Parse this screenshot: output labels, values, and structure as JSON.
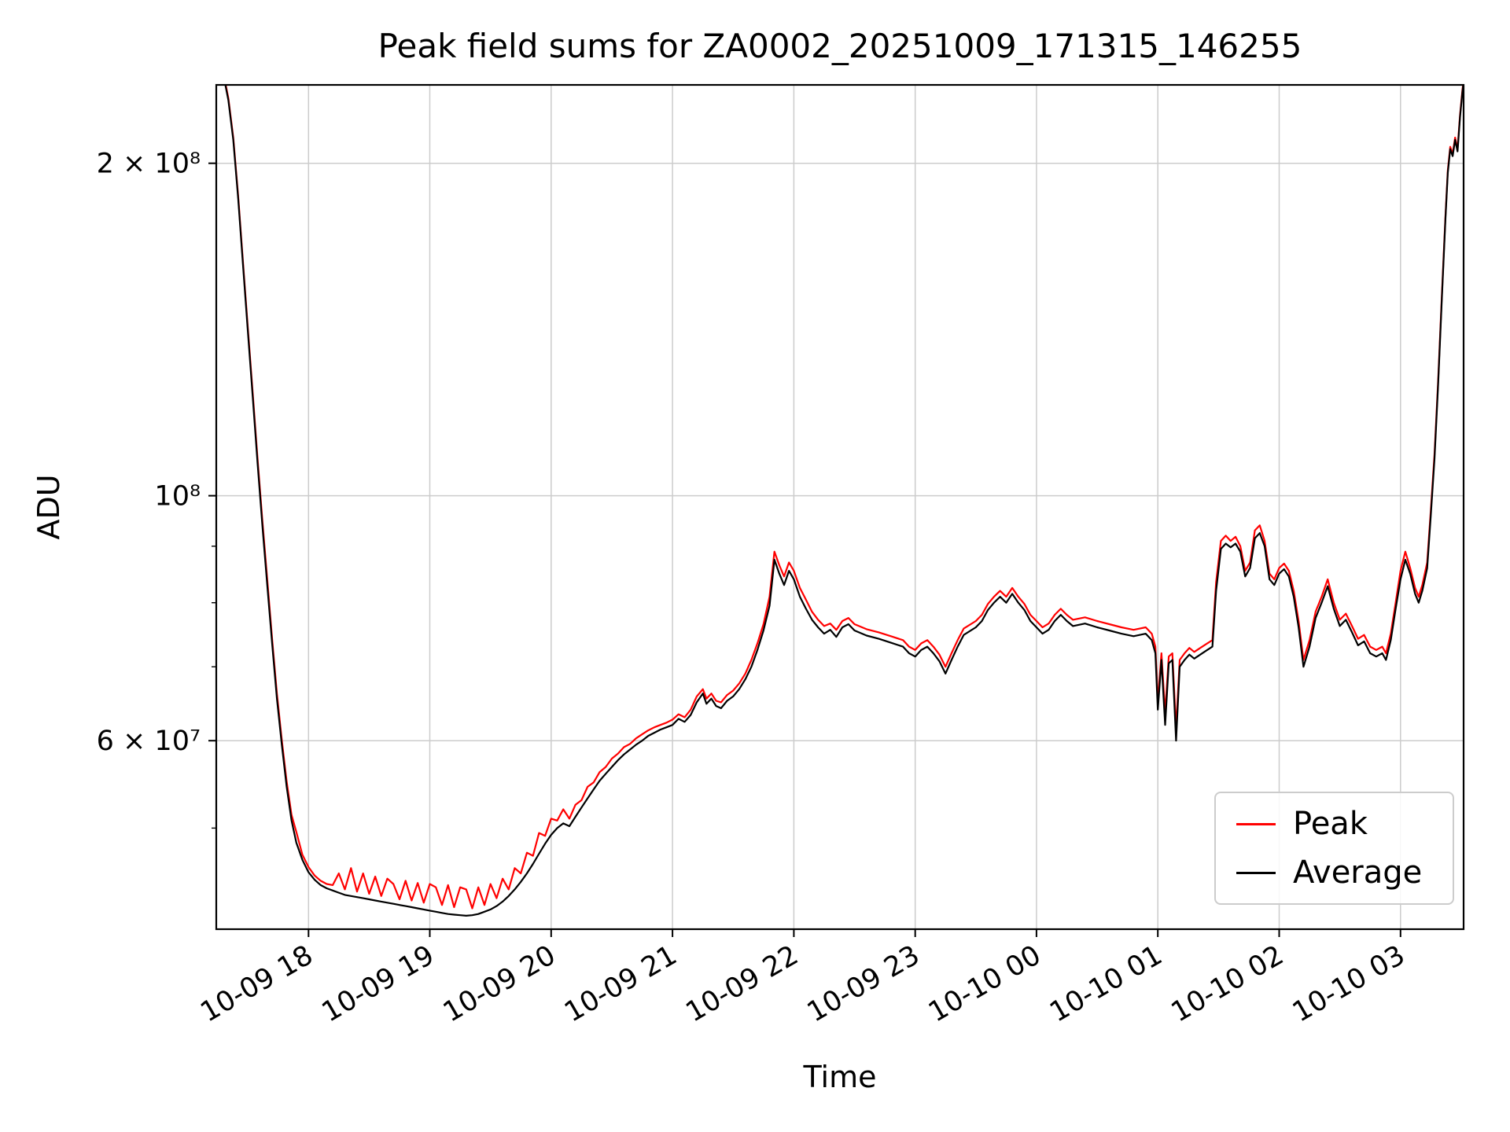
{
  "chart_data": {
    "type": "line",
    "title": "Peak field sums for ZA0002_20251009_171315_146255",
    "xlabel": "Time",
    "ylabel": "ADU",
    "yscale": "log",
    "grid": true,
    "grid_color": "#cccccc",
    "legend_position": "lower right",
    "xlim_hours": [
      17.24,
      27.52
    ],
    "ylim_millions": [
      40.5,
      235.5
    ],
    "xticks": [
      18,
      19,
      20,
      21,
      22,
      23,
      24,
      25,
      26,
      27
    ],
    "xtick_labels": [
      "10-09 18",
      "10-09 19",
      "10-09 20",
      "10-09 21",
      "10-09 22",
      "10-09 23",
      "10-10 00",
      "10-10 01",
      "10-10 02",
      "10-10 03"
    ],
    "yticks_millions": [
      60,
      100,
      200
    ],
    "ytick_labels": [
      "6 × 10⁷",
      "10⁸",
      "2 × 10⁸"
    ],
    "yticks_minor_millions": [
      50,
      70,
      80,
      90
    ],
    "series_meta": [
      {
        "name": "Peak",
        "color": "#ff0000"
      },
      {
        "name": "Average",
        "color": "#000000"
      }
    ],
    "value_unit": "ADU in millions (1e6); time in hours from 2025-10-09 00:00",
    "columns": [
      "time_hours",
      "average_millions",
      "peak_millions"
    ],
    "points": [
      [
        17.3,
        240,
        241
      ],
      [
        17.34,
        228,
        229
      ],
      [
        17.38,
        210,
        211
      ],
      [
        17.42,
        186,
        187
      ],
      [
        17.46,
        162,
        163
      ],
      [
        17.5,
        141,
        142
      ],
      [
        17.54,
        123,
        124
      ],
      [
        17.58,
        107,
        108
      ],
      [
        17.62,
        94,
        95
      ],
      [
        17.66,
        83,
        84
      ],
      [
        17.7,
        73.5,
        74.2
      ],
      [
        17.74,
        65.5,
        66.2
      ],
      [
        17.78,
        59.5,
        60.1
      ],
      [
        17.82,
        54.5,
        55.1
      ],
      [
        17.86,
        50.8,
        51.4
      ],
      [
        17.9,
        48.5,
        49.6
      ],
      [
        17.95,
        46.8,
        47.3
      ],
      [
        18.0,
        45.6,
        46.1
      ],
      [
        18.05,
        44.9,
        45.3
      ],
      [
        18.1,
        44.4,
        44.8
      ],
      [
        18.15,
        44.1,
        44.5
      ],
      [
        18.2,
        43.9,
        44.4
      ],
      [
        18.25,
        43.7,
        45.5
      ],
      [
        18.3,
        43.5,
        44.0
      ],
      [
        18.35,
        43.4,
        46.0
      ],
      [
        18.4,
        43.3,
        43.8
      ],
      [
        18.45,
        43.2,
        45.5
      ],
      [
        18.5,
        43.1,
        43.6
      ],
      [
        18.55,
        43.0,
        45.2
      ],
      [
        18.6,
        42.9,
        43.4
      ],
      [
        18.65,
        42.8,
        45.0
      ],
      [
        18.7,
        42.7,
        44.5
      ],
      [
        18.75,
        42.6,
        43.1
      ],
      [
        18.8,
        42.5,
        44.8
      ],
      [
        18.85,
        42.4,
        43.0
      ],
      [
        18.9,
        42.3,
        44.6
      ],
      [
        18.95,
        42.2,
        42.8
      ],
      [
        19.0,
        42.1,
        44.5
      ],
      [
        19.05,
        42.0,
        44.2
      ],
      [
        19.1,
        41.9,
        42.6
      ],
      [
        19.15,
        41.8,
        44.4
      ],
      [
        19.2,
        41.75,
        42.4
      ],
      [
        19.25,
        41.7,
        44.2
      ],
      [
        19.3,
        41.65,
        44.0
      ],
      [
        19.35,
        41.7,
        42.3
      ],
      [
        19.4,
        41.8,
        44.2
      ],
      [
        19.45,
        42.0,
        42.6
      ],
      [
        19.5,
        42.2,
        44.5
      ],
      [
        19.55,
        42.5,
        43.2
      ],
      [
        19.6,
        42.9,
        45.0
      ],
      [
        19.65,
        43.4,
        44.0
      ],
      [
        19.7,
        44.0,
        46.0
      ],
      [
        19.75,
        44.7,
        45.5
      ],
      [
        19.8,
        45.5,
        47.5
      ],
      [
        19.85,
        46.4,
        47.2
      ],
      [
        19.9,
        47.4,
        49.5
      ],
      [
        19.95,
        48.4,
        49.2
      ],
      [
        20.0,
        49.3,
        51.0
      ],
      [
        20.05,
        50.0,
        50.8
      ],
      [
        20.1,
        50.5,
        52.0
      ],
      [
        20.15,
        50.2,
        51.0
      ],
      [
        20.2,
        51.2,
        52.5
      ],
      [
        20.25,
        52.2,
        53.0
      ],
      [
        20.3,
        53.2,
        54.5
      ],
      [
        20.35,
        54.2,
        55.0
      ],
      [
        20.4,
        55.2,
        56.2
      ],
      [
        20.45,
        56.0,
        56.8
      ],
      [
        20.5,
        56.8,
        57.8
      ],
      [
        20.55,
        57.6,
        58.4
      ],
      [
        20.6,
        58.3,
        59.2
      ],
      [
        20.65,
        58.9,
        59.6
      ],
      [
        20.7,
        59.5,
        60.3
      ],
      [
        20.75,
        60.0,
        60.8
      ],
      [
        20.8,
        60.6,
        61.3
      ],
      [
        20.85,
        61.0,
        61.7
      ],
      [
        20.9,
        61.4,
        62.0
      ],
      [
        20.95,
        61.7,
        62.3
      ],
      [
        21.0,
        62.0,
        62.7
      ],
      [
        21.05,
        62.8,
        63.4
      ],
      [
        21.1,
        62.4,
        63.0
      ],
      [
        21.15,
        63.3,
        64.0
      ],
      [
        21.2,
        65.0,
        65.8
      ],
      [
        21.25,
        66.2,
        66.8
      ],
      [
        21.28,
        64.8,
        65.5
      ],
      [
        21.32,
        65.5,
        66.2
      ],
      [
        21.36,
        64.5,
        65.2
      ],
      [
        21.4,
        64.2,
        65.0
      ],
      [
        21.45,
        65.2,
        66.0
      ],
      [
        21.5,
        65.8,
        66.6
      ],
      [
        21.55,
        66.8,
        67.6
      ],
      [
        21.6,
        68.2,
        69.0
      ],
      [
        21.65,
        70.0,
        71.0
      ],
      [
        21.7,
        72.5,
        73.5
      ],
      [
        21.75,
        75.5,
        76.5
      ],
      [
        21.8,
        79.5,
        81.0
      ],
      [
        21.84,
        87.5,
        89.0
      ],
      [
        21.88,
        85.0,
        86.5
      ],
      [
        21.92,
        83.0,
        84.5
      ],
      [
        21.96,
        85.5,
        87.0
      ],
      [
        22.0,
        84.0,
        85.5
      ],
      [
        22.05,
        81.0,
        82.5
      ],
      [
        22.1,
        79.0,
        80.5
      ],
      [
        22.15,
        77.2,
        78.5
      ],
      [
        22.2,
        76.0,
        77.2
      ],
      [
        22.25,
        75.0,
        76.2
      ],
      [
        22.3,
        75.6,
        76.6
      ],
      [
        22.35,
        74.5,
        75.6
      ],
      [
        22.4,
        76.0,
        77.0
      ],
      [
        22.45,
        76.5,
        77.5
      ],
      [
        22.5,
        75.5,
        76.5
      ],
      [
        22.6,
        74.7,
        75.7
      ],
      [
        22.7,
        74.2,
        75.2
      ],
      [
        22.8,
        73.6,
        74.6
      ],
      [
        22.9,
        73.0,
        74.0
      ],
      [
        22.95,
        72.0,
        73.0
      ],
      [
        23.0,
        71.5,
        72.5
      ],
      [
        23.05,
        72.5,
        73.5
      ],
      [
        23.1,
        73.0,
        74.0
      ],
      [
        23.15,
        72.0,
        73.0
      ],
      [
        23.2,
        70.8,
        71.8
      ],
      [
        23.25,
        69.0,
        70.0
      ],
      [
        23.3,
        71.0,
        72.0
      ],
      [
        23.35,
        73.0,
        74.0
      ],
      [
        23.4,
        74.8,
        75.8
      ],
      [
        23.5,
        76.0,
        77.0
      ],
      [
        23.55,
        77.0,
        78.0
      ],
      [
        23.6,
        78.8,
        79.8
      ],
      [
        23.65,
        80.0,
        81.0
      ],
      [
        23.7,
        81.0,
        82.0
      ],
      [
        23.75,
        80.0,
        81.0
      ],
      [
        23.8,
        81.5,
        82.5
      ],
      [
        23.85,
        80.0,
        81.0
      ],
      [
        23.9,
        78.8,
        79.8
      ],
      [
        23.95,
        77.0,
        78.0
      ],
      [
        24.0,
        76.0,
        77.0
      ],
      [
        24.05,
        75.0,
        76.0
      ],
      [
        24.1,
        75.6,
        76.6
      ],
      [
        24.15,
        77.0,
        78.0
      ],
      [
        24.2,
        78.0,
        79.0
      ],
      [
        24.25,
        77.0,
        78.0
      ],
      [
        24.3,
        76.2,
        77.2
      ],
      [
        24.4,
        76.6,
        77.6
      ],
      [
        24.5,
        76.0,
        77.0
      ],
      [
        24.6,
        75.5,
        76.5
      ],
      [
        24.7,
        75.0,
        76.0
      ],
      [
        24.8,
        74.6,
        75.6
      ],
      [
        24.9,
        75.0,
        76.0
      ],
      [
        24.95,
        74.0,
        75.0
      ],
      [
        24.98,
        72.0,
        73.0
      ],
      [
        25.0,
        64.0,
        65.0
      ],
      [
        25.03,
        71.0,
        72.0
      ],
      [
        25.06,
        62.0,
        63.5
      ],
      [
        25.09,
        70.5,
        71.5
      ],
      [
        25.12,
        71.0,
        72.0
      ],
      [
        25.15,
        60.0,
        61.5
      ],
      [
        25.18,
        70.0,
        71.0
      ],
      [
        25.22,
        71.0,
        72.0
      ],
      [
        25.26,
        71.8,
        72.8
      ],
      [
        25.3,
        71.2,
        72.2
      ],
      [
        25.35,
        71.8,
        72.8
      ],
      [
        25.4,
        72.4,
        73.4
      ],
      [
        25.45,
        73.0,
        74.0
      ],
      [
        25.48,
        82.0,
        83.5
      ],
      [
        25.52,
        89.5,
        91.0
      ],
      [
        25.56,
        90.5,
        92.0
      ],
      [
        25.6,
        89.8,
        91.0
      ],
      [
        25.64,
        90.5,
        91.8
      ],
      [
        25.68,
        89.0,
        90.0
      ],
      [
        25.72,
        84.5,
        85.5
      ],
      [
        25.76,
        86.0,
        87.0
      ],
      [
        25.8,
        91.5,
        93.0
      ],
      [
        25.84,
        92.5,
        94.0
      ],
      [
        25.88,
        90.0,
        91.0
      ],
      [
        25.92,
        84.0,
        85.0
      ],
      [
        25.96,
        83.0,
        84.0
      ],
      [
        26.0,
        85.0,
        86.0
      ],
      [
        26.04,
        85.8,
        86.8
      ],
      [
        26.08,
        84.5,
        85.5
      ],
      [
        26.12,
        81.0,
        82.0
      ],
      [
        26.16,
        76.0,
        77.0
      ],
      [
        26.2,
        70.0,
        71.0
      ],
      [
        26.25,
        73.0,
        74.0
      ],
      [
        26.3,
        77.5,
        78.5
      ],
      [
        26.35,
        80.0,
        81.0
      ],
      [
        26.4,
        82.8,
        84.0
      ],
      [
        26.45,
        79.0,
        80.0
      ],
      [
        26.5,
        76.2,
        77.2
      ],
      [
        26.55,
        77.2,
        78.2
      ],
      [
        26.6,
        75.2,
        76.2
      ],
      [
        26.65,
        73.2,
        74.2
      ],
      [
        26.7,
        73.8,
        74.8
      ],
      [
        26.75,
        72.0,
        73.0
      ],
      [
        26.8,
        71.5,
        72.5
      ],
      [
        26.85,
        72.0,
        73.0
      ],
      [
        26.88,
        71.0,
        72.0
      ],
      [
        26.92,
        74.0,
        75.0
      ],
      [
        26.96,
        79.0,
        80.0
      ],
      [
        27.0,
        84.0,
        85.5
      ],
      [
        27.04,
        87.5,
        89.0
      ],
      [
        27.08,
        85.0,
        86.0
      ],
      [
        27.12,
        81.5,
        82.5
      ],
      [
        27.15,
        80.0,
        81.0
      ],
      [
        27.18,
        82.0,
        83.0
      ],
      [
        27.22,
        86.0,
        87.0
      ],
      [
        27.25,
        96.0,
        97.0
      ],
      [
        27.28,
        108,
        109
      ],
      [
        27.31,
        126,
        127
      ],
      [
        27.34,
        150,
        151
      ],
      [
        27.37,
        178,
        179
      ],
      [
        27.39,
        196,
        197
      ],
      [
        27.41,
        206,
        207
      ],
      [
        27.43,
        203,
        204
      ],
      [
        27.45,
        210,
        211
      ],
      [
        27.47,
        205,
        206
      ],
      [
        27.49,
        220,
        221
      ],
      [
        27.51,
        232,
        233
      ],
      [
        27.53,
        242,
        243
      ]
    ]
  }
}
